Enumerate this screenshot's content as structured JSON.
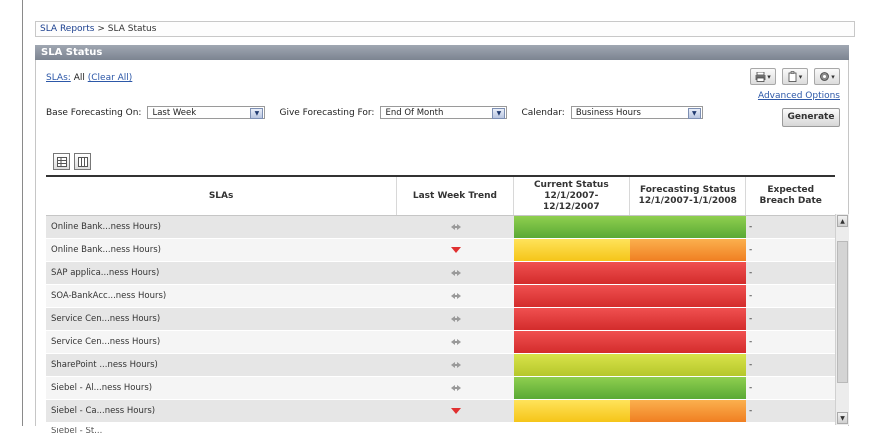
{
  "breadcrumb": {
    "root": "SLA Reports",
    "separator": ">",
    "current": "SLA Status"
  },
  "panel": {
    "title": "SLA Status"
  },
  "sla_filter": {
    "label": "SLAs:",
    "value": "All",
    "clear_link": "(Clear All)"
  },
  "toolbar": {
    "print_icon": "printer-icon",
    "export_icon": "export-icon",
    "settings_icon": "settings-icon",
    "advanced_options": "Advanced Options",
    "generate": "Generate"
  },
  "filters": {
    "base_label": "Base Forecasting On:",
    "base_value": "Last Week",
    "give_label": "Give Forecasting For:",
    "give_value": "End Of Month",
    "calendar_label": "Calendar:",
    "calendar_value": "Business Hours"
  },
  "view_toggles": [
    "table-view-icon",
    "column-view-icon"
  ],
  "table": {
    "headers": {
      "slas": "SLAs",
      "trend": "Last Week Trend",
      "current": "Current Status\n12/1/2007-\n12/12/2007",
      "forecast": "Forecasting Status\n12/1/2007-1/1/2008",
      "breach": "Expected\nBreach Date"
    },
    "rows": [
      {
        "name": "Online Bank...ness Hours)",
        "trend": "flat",
        "current": "green",
        "forecast": "green",
        "breach": "-"
      },
      {
        "name": "Online Bank...ness Hours)",
        "trend": "down",
        "current": "yellow",
        "forecast": "orange",
        "breach": "-"
      },
      {
        "name": "SAP applica...ness Hours)",
        "trend": "flat",
        "current": "red",
        "forecast": "red",
        "breach": "-"
      },
      {
        "name": "SOA-BankAcc...ness Hours)",
        "trend": "flat",
        "current": "red",
        "forecast": "red",
        "breach": "-"
      },
      {
        "name": "Service Cen...ness Hours)",
        "trend": "flat",
        "current": "red",
        "forecast": "red",
        "breach": "-"
      },
      {
        "name": "Service Cen...ness Hours)",
        "trend": "flat",
        "current": "red",
        "forecast": "red",
        "breach": "-"
      },
      {
        "name": "SharePoint ...ness Hours)",
        "trend": "flat",
        "current": "lime",
        "forecast": "lime",
        "breach": "-"
      },
      {
        "name": "Siebel - Al...ness Hours)",
        "trend": "flat",
        "current": "green",
        "forecast": "green",
        "breach": "-"
      },
      {
        "name": "Siebel - Ca...ness Hours)",
        "trend": "down",
        "current": "yellow",
        "forecast": "orange",
        "breach": "-"
      }
    ],
    "partial_row": "Siebel - St..."
  },
  "colors": {
    "green": "#6fbb3d",
    "red": "#e03a3a",
    "yellow": "#f9d02e",
    "orange": "#f5982f",
    "lime": "#c7d43a",
    "trend_flat": "#9a9a9a",
    "trend_down": "#e03030",
    "header_bar": "#8a919c"
  }
}
